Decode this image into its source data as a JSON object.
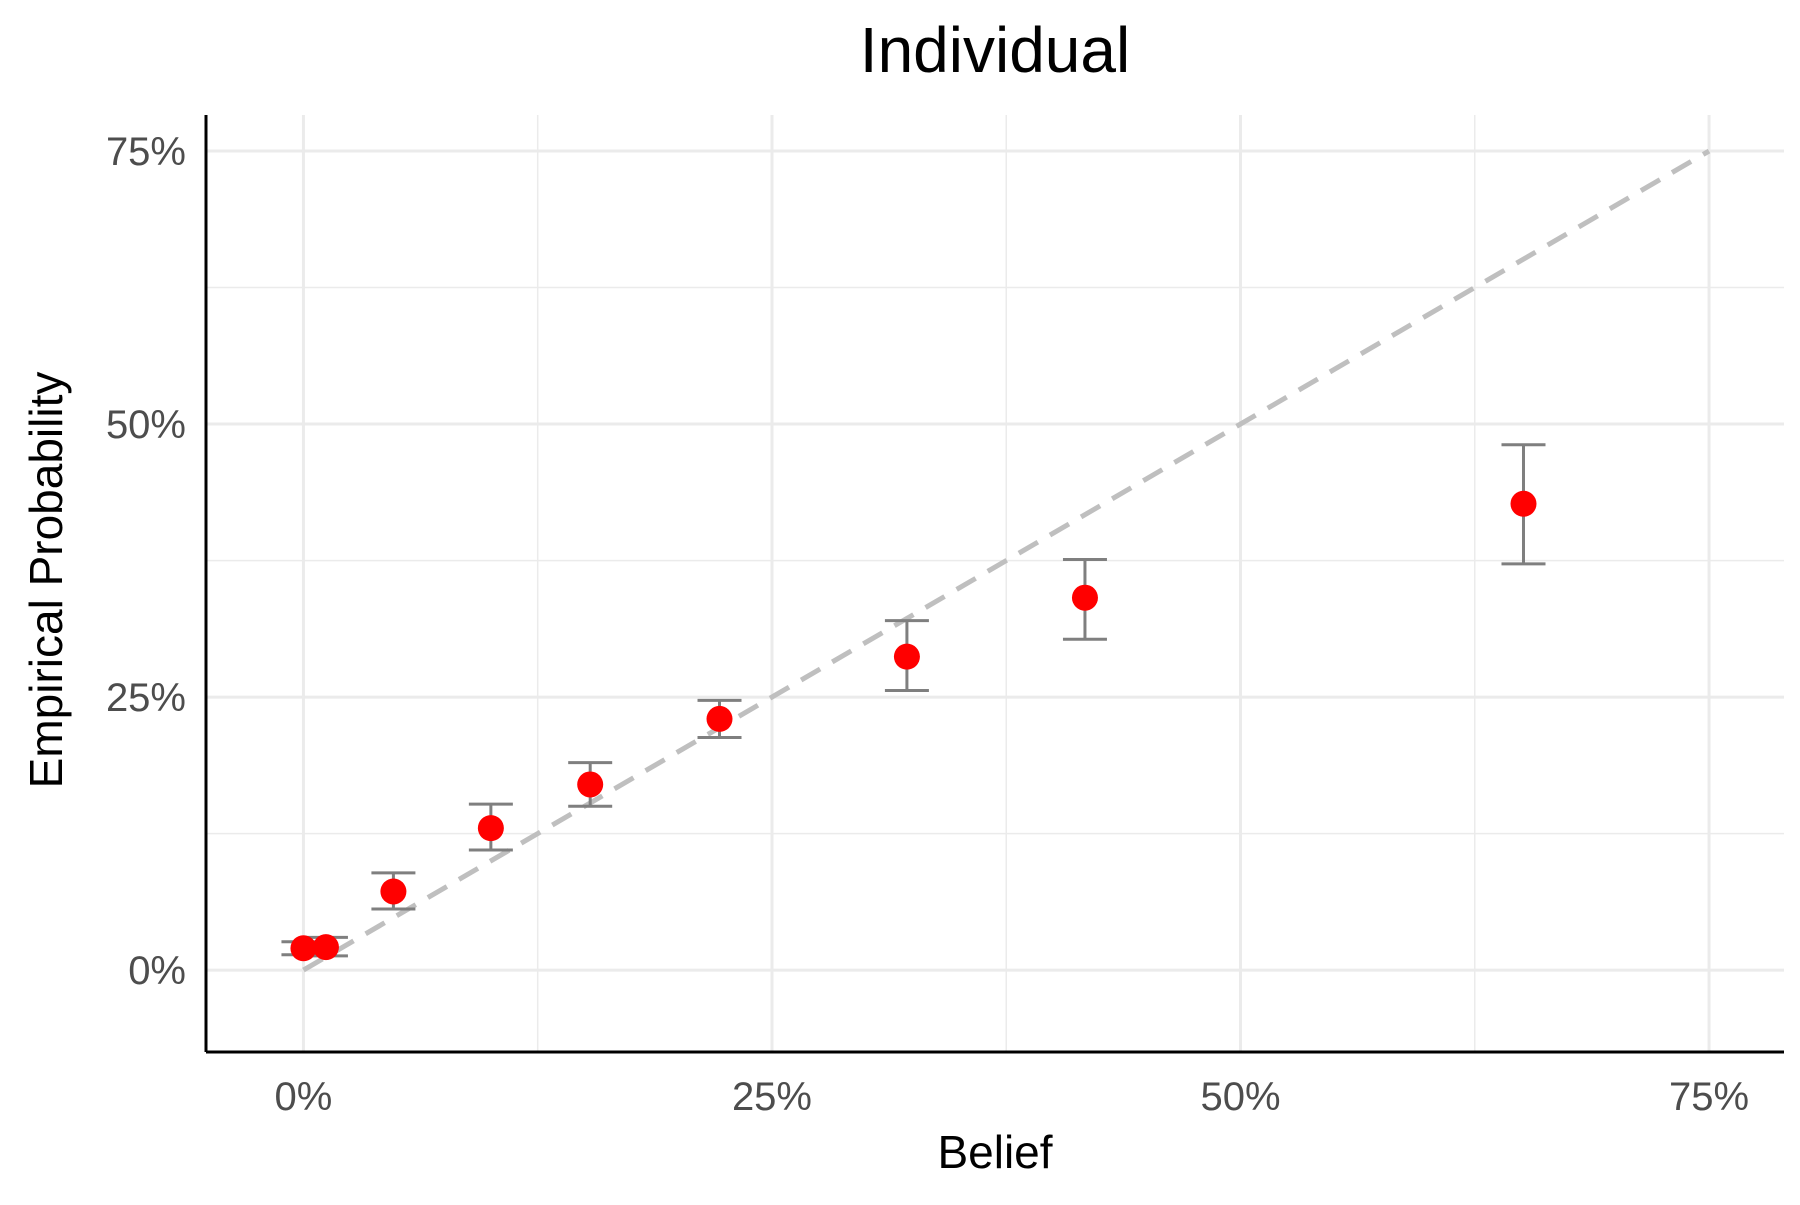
{
  "chart_data": {
    "type": "scatter",
    "title": "Individual",
    "xlabel": "Belief",
    "ylabel": "Empirical Probability",
    "xlim": [
      -0.052,
      0.79
    ],
    "ylim": [
      -0.075,
      0.783
    ],
    "x_ticks": [
      0,
      0.25,
      0.5,
      0.75
    ],
    "x_tick_labels": [
      "0%",
      "25%",
      "50%",
      "75%"
    ],
    "y_ticks": [
      0,
      0.25,
      0.5,
      0.75
    ],
    "y_tick_labels": [
      "0%",
      "25%",
      "50%",
      "75%"
    ],
    "minor_grid": [
      0.125,
      0.375,
      0.625
    ],
    "grid": true,
    "reference_line": {
      "x": [
        0,
        0.75
      ],
      "y": [
        0,
        0.75
      ],
      "style": "dashed",
      "color": "#bfbfbf"
    },
    "points": [
      {
        "x": 0.0,
        "y": 0.02,
        "ymin": 0.014,
        "ymax": 0.026
      },
      {
        "x": 0.012,
        "y": 0.021,
        "ymin": 0.013,
        "ymax": 0.03
      },
      {
        "x": 0.048,
        "y": 0.072,
        "ymin": 0.056,
        "ymax": 0.089
      },
      {
        "x": 0.1,
        "y": 0.13,
        "ymin": 0.11,
        "ymax": 0.152
      },
      {
        "x": 0.153,
        "y": 0.17,
        "ymin": 0.15,
        "ymax": 0.19
      },
      {
        "x": 0.222,
        "y": 0.23,
        "ymin": 0.213,
        "ymax": 0.247
      },
      {
        "x": 0.322,
        "y": 0.287,
        "ymin": 0.256,
        "ymax": 0.32
      },
      {
        "x": 0.417,
        "y": 0.341,
        "ymin": 0.303,
        "ymax": 0.376
      },
      {
        "x": 0.651,
        "y": 0.427,
        "ymin": 0.372,
        "ymax": 0.481
      }
    ],
    "colors": {
      "point": "#ff0000",
      "errorbar": "#7f7f7f",
      "grid": "#ebebeb",
      "axis": "#000000",
      "reference": "#bfbfbf"
    }
  }
}
